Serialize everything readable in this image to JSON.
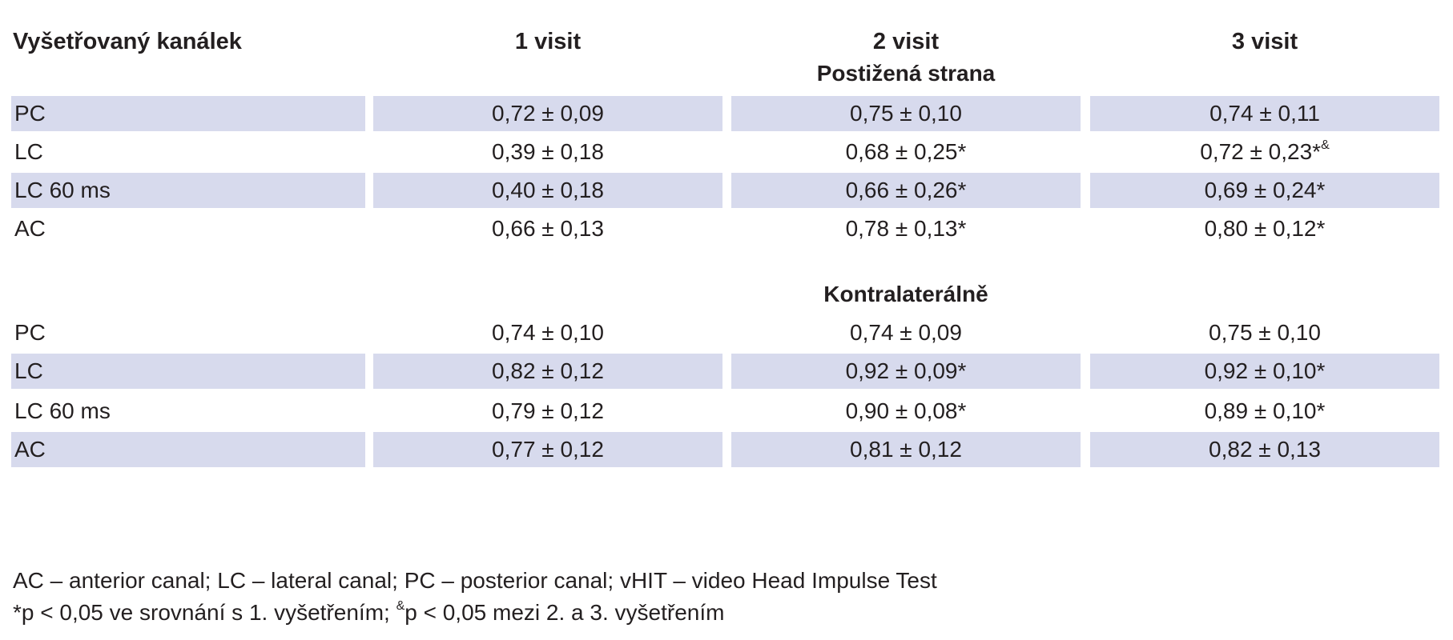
{
  "header": {
    "col0": "Vyšetřovaný kanálek",
    "col1": "1 visit",
    "col2": "2 visit",
    "col3": "3 visit"
  },
  "sections": [
    {
      "title": "Postižená strana",
      "rows": [
        {
          "label": "PC",
          "v1": "0,72 ± 0,09",
          "v2": "0,75 ± 0,10",
          "v3": "0,74 ± 0,11",
          "v3_sup": ""
        },
        {
          "label": "LC",
          "v1": "0,39 ± 0,18",
          "v2": "0,68 ± 0,25*",
          "v3": "0,72 ± 0,23*",
          "v3_sup": "&"
        },
        {
          "label": "LC 60 ms",
          "v1": "0,40 ± 0,18",
          "v2": "0,66 ± 0,26*",
          "v3": "0,69 ± 0,24*",
          "v3_sup": ""
        },
        {
          "label": "AC",
          "v1": "0,66 ± 0,13",
          "v2": "0,78 ± 0,13*",
          "v3": "0,80 ± 0,12*",
          "v3_sup": ""
        }
      ]
    },
    {
      "title": "Kontralaterálně",
      "rows": [
        {
          "label": "PC",
          "v1": "0,74 ± 0,10",
          "v2": "0,74 ± 0,09",
          "v3": "0,75 ± 0,10",
          "v3_sup": ""
        },
        {
          "label": "LC",
          "v1": "0,82 ± 0,12",
          "v2": "0,92 ± 0,09*",
          "v3": "0,92 ± 0,10*",
          "v3_sup": ""
        },
        {
          "label": "LC 60 ms",
          "v1": "0,79 ± 0,12",
          "v2": "0,90 ± 0,08*",
          "v3": "0,89 ± 0,10*",
          "v3_sup": ""
        },
        {
          "label": "AC",
          "v1": "0,77 ± 0,12",
          "v2": "0,81 ± 0,12",
          "v3": "0,82 ± 0,13",
          "v3_sup": ""
        }
      ]
    }
  ],
  "notes": {
    "line1": "AC – anterior canal; LC – lateral canal; PC – posterior canal; vHIT – video Head Impulse Test",
    "line2_a": "*p < 0,05 ve srovnání s 1. vyšetřením; ",
    "line2_sup": "&",
    "line2_b": "p < 0,05 mezi 2. a 3. vyšetřením"
  },
  "colors": {
    "row_shade": "#d7daed",
    "text": "#231f20"
  }
}
